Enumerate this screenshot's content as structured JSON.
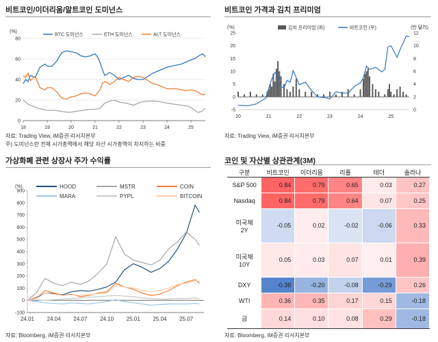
{
  "panels": {
    "dominance": {
      "title": "비트코인/이더리움/알트코인 도미넌스",
      "source": "자료: Trading View, iM증권 리서치본부",
      "note": "주) 도미넌스란 전체 시가총액에서 해당 자산 시가총액이 차지하는 비중"
    },
    "kimchi": {
      "title": "비트코인 가격과 김치 프리미엄",
      "source": "자료: Trading View, iM증권 리서치본부"
    },
    "stocks": {
      "title": "가상화폐 관련 상장사 주가 수익률",
      "source": "자료: Bloomberg, iM증권 리서치본부"
    },
    "corr": {
      "title": "코인 및 자산별 상관관계(3M)",
      "source": "자료: Bloomberg, iM증권 리서치본부"
    }
  },
  "chart_data": [
    {
      "type": "line",
      "ylabel": "(%)",
      "ylim": [
        0,
        80
      ],
      "yticks": [
        0,
        20,
        40,
        60,
        80
      ],
      "xticks": [
        "18",
        "19",
        "20",
        "21",
        "22",
        "23",
        "24",
        "25"
      ],
      "xlim": [
        2018.0,
        2025.6
      ],
      "legend": "top",
      "series": [
        {
          "name": "BTC 도미넌스",
          "color": "#2e74c0",
          "x": [
            2018.0,
            2018.1,
            2018.2,
            2018.3,
            2018.5,
            2018.7,
            2018.9,
            2019.0,
            2019.2,
            2019.4,
            2019.6,
            2019.8,
            2020.0,
            2020.2,
            2020.4,
            2020.6,
            2020.8,
            2021.0,
            2021.1,
            2021.2,
            2021.3,
            2021.4,
            2021.5,
            2021.6,
            2021.8,
            2022.0,
            2022.2,
            2022.4,
            2022.6,
            2022.8,
            2023.0,
            2023.2,
            2023.4,
            2023.6,
            2023.8,
            2024.0,
            2024.2,
            2024.4,
            2024.6,
            2024.8,
            2025.0,
            2025.2,
            2025.4,
            2025.5,
            2025.6
          ],
          "values": [
            36,
            40,
            38,
            44,
            42,
            52,
            55,
            53,
            53,
            58,
            66,
            68,
            67,
            66,
            63,
            62,
            63,
            65,
            62,
            57,
            50,
            44,
            45,
            47,
            44,
            40,
            42,
            44,
            41,
            40,
            40,
            43,
            46,
            48,
            50,
            52,
            53,
            54,
            55,
            57,
            59,
            61,
            64,
            65,
            62
          ]
        },
        {
          "name": "ETH 도미넌스",
          "color": "#a6a6a6",
          "x": [
            2018.0,
            2018.2,
            2018.4,
            2018.6,
            2018.8,
            2019.0,
            2019.3,
            2019.6,
            2019.9,
            2020.2,
            2020.5,
            2020.8,
            2021.0,
            2021.2,
            2021.4,
            2021.6,
            2021.8,
            2022.0,
            2022.3,
            2022.6,
            2022.9,
            2023.2,
            2023.5,
            2023.8,
            2024.0,
            2024.3,
            2024.6,
            2024.9,
            2025.1,
            2025.3,
            2025.45,
            2025.6
          ],
          "values": [
            20,
            16,
            14,
            12,
            11,
            10,
            10,
            9,
            8,
            9,
            10,
            11,
            11,
            12,
            17,
            19,
            20,
            18,
            17,
            15,
            18,
            19,
            19,
            18,
            17,
            16,
            15,
            14,
            11,
            8,
            9,
            12
          ]
        },
        {
          "name": "ALT 도미넌스",
          "color": "#ed7d31",
          "x": [
            2018.0,
            2018.1,
            2018.2,
            2018.3,
            2018.5,
            2018.7,
            2018.9,
            2019.0,
            2019.2,
            2019.4,
            2019.6,
            2019.8,
            2020.0,
            2020.2,
            2020.4,
            2020.6,
            2020.8,
            2021.0,
            2021.1,
            2021.2,
            2021.3,
            2021.4,
            2021.5,
            2021.6,
            2021.8,
            2022.0,
            2022.2,
            2022.4,
            2022.6,
            2022.8,
            2023.0,
            2023.2,
            2023.4,
            2023.6,
            2023.8,
            2024.0,
            2024.2,
            2024.4,
            2024.6,
            2024.8,
            2025.0,
            2025.2,
            2025.4,
            2025.5,
            2025.6
          ],
          "values": [
            44,
            42,
            46,
            39,
            43,
            32,
            30,
            32,
            32,
            28,
            22,
            21,
            23,
            24,
            26,
            27,
            26,
            24,
            27,
            30,
            36,
            38,
            37,
            35,
            38,
            42,
            40,
            38,
            42,
            43,
            42,
            39,
            36,
            35,
            33,
            31,
            31,
            31,
            30,
            29,
            30,
            29,
            26,
            25,
            26
          ]
        }
      ]
    },
    {
      "type": "bar+line",
      "ylabel": "(%)",
      "y2label": "(만 달러)",
      "ylim": [
        -5,
        25
      ],
      "yticks": [
        -5,
        0,
        5,
        10,
        15,
        20,
        25
      ],
      "y2lim": [
        0,
        12
      ],
      "y2ticks": [
        0,
        2,
        4,
        6,
        8,
        10,
        12
      ],
      "xticks": [
        "20",
        "21",
        "22",
        "23",
        "24",
        "25"
      ],
      "xlim": [
        2020.0,
        2025.6
      ],
      "legend": "top",
      "series": [
        {
          "name": "김치 프리미엄 (좌)",
          "kind": "bar",
          "color": "#595959",
          "x": [
            2020.0,
            2020.2,
            2020.4,
            2020.6,
            2020.8,
            2020.95,
            2021.0,
            2021.05,
            2021.1,
            2021.15,
            2021.2,
            2021.25,
            2021.3,
            2021.35,
            2021.4,
            2021.5,
            2021.6,
            2021.7,
            2021.8,
            2021.9,
            2022.0,
            2022.2,
            2022.4,
            2022.6,
            2022.8,
            2023.0,
            2023.2,
            2023.4,
            2023.6,
            2023.8,
            2024.0,
            2024.1,
            2024.15,
            2024.2,
            2024.25,
            2024.3,
            2024.4,
            2024.5,
            2024.6,
            2024.8,
            2024.9,
            2024.95,
            2025.0,
            2025.1,
            2025.2,
            2025.3,
            2025.4,
            2025.5
          ],
          "values": [
            2,
            1,
            2,
            1,
            1,
            2,
            3,
            5,
            4,
            9,
            6,
            11,
            14,
            10,
            8,
            5,
            3,
            2,
            4,
            7,
            3,
            2,
            2,
            1,
            1,
            2,
            1,
            2,
            3,
            1,
            3,
            7,
            9,
            10,
            11,
            8,
            5,
            3,
            2,
            1,
            3,
            5,
            2,
            1,
            3,
            4,
            2,
            1
          ]
        },
        {
          "name": "비트코인 (우)",
          "kind": "line",
          "color": "#2e74c0",
          "x": [
            2020.0,
            2020.3,
            2020.6,
            2020.9,
            2021.0,
            2021.1,
            2021.2,
            2021.3,
            2021.4,
            2021.5,
            2021.6,
            2021.7,
            2021.8,
            2021.9,
            2022.0,
            2022.2,
            2022.4,
            2022.6,
            2022.8,
            2023.0,
            2023.2,
            2023.4,
            2023.6,
            2023.8,
            2024.0,
            2024.1,
            2024.2,
            2024.3,
            2024.5,
            2024.7,
            2024.8,
            2024.9,
            2025.0,
            2025.2,
            2025.3,
            2025.4,
            2025.5,
            2025.6
          ],
          "values": [
            0.7,
            0.6,
            0.9,
            1.8,
            3.3,
            4.8,
            5.8,
            5.5,
            3.6,
            3.4,
            4.6,
            4.3,
            6.1,
            5.0,
            3.9,
            4.3,
            3.0,
            2.0,
            1.9,
            1.7,
            2.8,
            2.6,
            2.6,
            3.6,
            4.2,
            5.0,
            6.8,
            6.3,
            6.6,
            5.9,
            6.3,
            9.8,
            10.0,
            8.2,
            9.4,
            10.4,
            11.5,
            11.4
          ]
        }
      ]
    },
    {
      "type": "line",
      "ylabel": "(%)",
      "ylim": [
        -100,
        900
      ],
      "yticks": [
        -100,
        0,
        100,
        200,
        300,
        400,
        500,
        600,
        700,
        800,
        900
      ],
      "xticks": [
        "24.01",
        "24.04",
        "24.07",
        "24.10",
        "25.01",
        "25.04",
        "25.07"
      ],
      "xlim": [
        0,
        20
      ],
      "legend": "top",
      "series": [
        {
          "name": "HOOD",
          "color": "#1f4e79",
          "x": [
            0,
            1,
            2,
            3,
            4,
            5,
            6,
            7,
            8,
            9,
            10,
            11,
            12,
            13,
            14,
            15,
            16,
            17,
            18,
            19,
            19.5
          ],
          "values": [
            0,
            20,
            60,
            55,
            45,
            70,
            80,
            75,
            90,
            110,
            150,
            250,
            300,
            270,
            230,
            260,
            320,
            420,
            550,
            780,
            720
          ]
        },
        {
          "name": "MSTR",
          "color": "#a6a6a6",
          "x": [
            0,
            1,
            2,
            3,
            4,
            5,
            6,
            7,
            8,
            9,
            10,
            11,
            12,
            13,
            14,
            15,
            16,
            17,
            18,
            19,
            19.5
          ],
          "values": [
            0,
            60,
            180,
            140,
            120,
            150,
            130,
            160,
            220,
            300,
            520,
            380,
            330,
            310,
            290,
            330,
            420,
            480,
            560,
            500,
            450
          ]
        },
        {
          "name": "COIN",
          "color": "#ed7d31",
          "x": [
            0,
            1,
            2,
            3,
            4,
            5,
            6,
            7,
            8,
            9,
            10,
            11,
            12,
            13,
            14,
            15,
            16,
            17,
            18,
            19,
            19.5
          ],
          "values": [
            0,
            20,
            80,
            60,
            40,
            50,
            30,
            40,
            60,
            70,
            140,
            110,
            90,
            60,
            40,
            50,
            80,
            120,
            150,
            170,
            140
          ]
        },
        {
          "name": "MARA",
          "color": "#9dc3e6",
          "x": [
            0,
            1,
            2,
            3,
            4,
            5,
            6,
            7,
            8,
            9,
            10,
            11,
            12,
            13,
            14,
            15,
            16,
            17,
            18,
            19,
            19.5
          ],
          "values": [
            0,
            -10,
            -20,
            -25,
            -30,
            -20,
            -25,
            -30,
            -20,
            -10,
            5,
            -10,
            -20,
            -30,
            -40,
            -35,
            -30,
            -30,
            -30,
            -25,
            -30
          ]
        },
        {
          "name": "PYPL",
          "color": "#c9c9c9",
          "x": [
            0,
            1,
            2,
            3,
            4,
            5,
            6,
            7,
            8,
            9,
            10,
            11,
            12,
            13,
            14,
            15,
            16,
            17,
            18,
            19,
            19.5
          ],
          "values": [
            0,
            5,
            0,
            5,
            10,
            15,
            20,
            25,
            30,
            35,
            40,
            35,
            30,
            20,
            15,
            10,
            10,
            15,
            15,
            20,
            15
          ]
        },
        {
          "name": "BITCOIN",
          "color": "#f8cbad",
          "x": [
            0,
            1,
            2,
            3,
            4,
            5,
            6,
            7,
            8,
            9,
            10,
            11,
            12,
            13,
            14,
            15,
            16,
            17,
            18,
            19,
            19.5
          ],
          "values": [
            0,
            30,
            60,
            50,
            40,
            45,
            40,
            45,
            55,
            60,
            120,
            110,
            100,
            80,
            70,
            80,
            100,
            130,
            140,
            160,
            155
          ]
        }
      ]
    },
    {
      "type": "table",
      "columns": [
        "구분",
        "비트코인",
        "이더리움",
        "리플",
        "테더",
        "솔라나"
      ],
      "rows": [
        [
          "S&P 500",
          "0.84",
          "0.79",
          "0.65",
          "0.03",
          "0.27"
        ],
        [
          "Nasdaq",
          "0.84",
          "0.79",
          "0.64",
          "0.07",
          "0.25"
        ],
        [
          "미국채 2Y",
          "-0.05",
          "0.02",
          "-0.02",
          "-0.06",
          "0.33"
        ],
        [
          "미국채 10Y",
          "0.05",
          "0.03",
          "0.07",
          "0.01",
          "0.39"
        ],
        [
          "DXY",
          "-0.38",
          "-0.20",
          "-0.08",
          "-0.29",
          "0.26"
        ],
        [
          "WTI",
          "0.36",
          "0.35",
          "0.17",
          "0.15",
          "-0.18"
        ],
        [
          "금",
          "0.14",
          "0.10",
          "0.08",
          "0.29",
          "-0.18"
        ]
      ]
    }
  ]
}
